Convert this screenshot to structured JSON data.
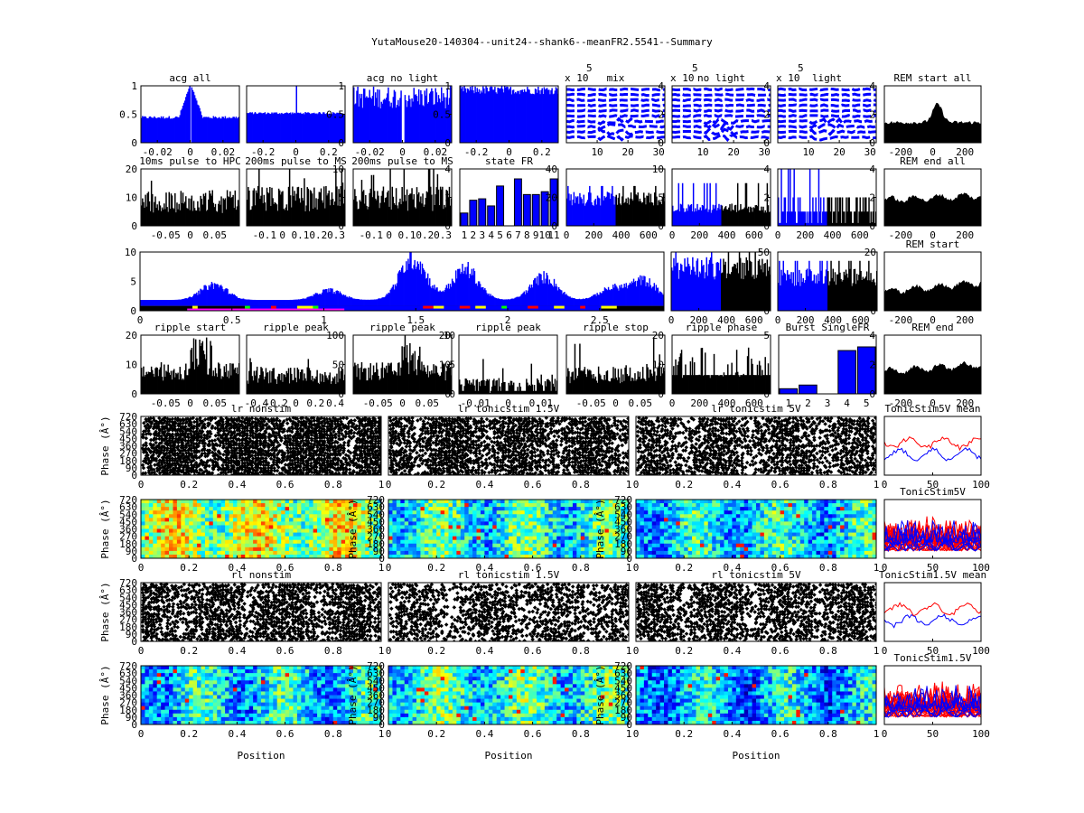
{
  "figure_title": "YutaMouse20-140304--unit24--shank6--meanFR2.5541--Summary",
  "chart_data": [
    {
      "id": "acg-all",
      "type": "bar",
      "title": "acg all",
      "color": "#0000ff",
      "ylim": [
        0,
        1
      ],
      "yticks_left": [
        "0",
        "0.5",
        "1"
      ],
      "yticks_right": [],
      "xticks": [
        "-0.02",
        "0",
        "0.02"
      ],
      "xlim": [
        -0.03,
        0.03
      ],
      "profile": "acg-center-dip",
      "base": 0.42,
      "peak": 1.0
    },
    {
      "id": "acg-2",
      "type": "bar",
      "title": "",
      "color": "#0000ff",
      "ylim": [
        0,
        1
      ],
      "yticks_right": [
        "0",
        "0.5",
        "1"
      ],
      "xticks": [
        "-0.2",
        "0",
        "0.2"
      ],
      "xlim": [
        -0.3,
        0.3
      ],
      "profile": "flat-spike",
      "base": 0.52,
      "peak": 1.0
    },
    {
      "id": "acg-no-light",
      "type": "bar",
      "title": "acg no light",
      "color": "#0000ff",
      "ylim": [
        0,
        1
      ],
      "yticks_right": [
        "0",
        "0.5",
        "1"
      ],
      "xticks": [
        "-0.02",
        "0",
        "0.02"
      ],
      "xlim": [
        -0.03,
        0.03
      ],
      "profile": "noisy-center-dip",
      "base": 0.8,
      "peak": 1.0
    },
    {
      "id": "acg-4",
      "type": "bar",
      "title": "",
      "color": "#0000ff",
      "ylim": [
        0,
        1
      ],
      "yticks_right": [],
      "xticks": [
        "-0.2",
        "0",
        "0.2"
      ],
      "xlim": [
        -0.3,
        0.3
      ],
      "profile": "noisy-high",
      "base": 0.95,
      "peak": 1.0
    },
    {
      "id": "mix",
      "type": "line",
      "title": "mix",
      "exponent_label": "x 10",
      "exponent": "5",
      "color": "#0000ff",
      "ylim": [
        0,
        4.3
      ],
      "yticks_right": [
        "0",
        "2",
        "4"
      ],
      "xticks": [
        "10",
        "20",
        "30"
      ],
      "xlim": [
        0,
        32
      ],
      "profile": "stacked-dashed"
    },
    {
      "id": "no-light-wave",
      "type": "line",
      "title": "no light",
      "exponent_label": "x 10",
      "exponent": "5",
      "color": "#0000ff",
      "ylim": [
        0,
        4.3
      ],
      "yticks_right": [
        "0",
        "2",
        "4"
      ],
      "xticks": [
        "10",
        "20",
        "30"
      ],
      "xlim": [
        0,
        32
      ],
      "profile": "stacked-dashed"
    },
    {
      "id": "light-wave",
      "type": "line",
      "title": "light",
      "exponent_label": "x 10",
      "exponent": "5",
      "color": "#0000ff",
      "ylim": [
        0,
        4
      ],
      "yticks_right": [
        "0",
        "2",
        "4"
      ],
      "xticks": [
        "10",
        "20",
        "30"
      ],
      "xlim": [
        0,
        32
      ],
      "profile": "stacked-dashed"
    },
    {
      "id": "rem-start-all",
      "type": "area",
      "title": "REM start all",
      "color": "#000000",
      "ylim": [
        0,
        4
      ],
      "yticks_left": [],
      "xticks": [
        "-200",
        "0",
        "200"
      ],
      "xlim": [
        -300,
        300
      ],
      "profile": "rem-peak",
      "base": 1.3,
      "peak": 2.6
    },
    {
      "id": "pulse-hpc",
      "type": "bar",
      "title": "10ms pulse to HPC",
      "color": "#000000",
      "ylim": [
        0,
        20
      ],
      "yticks_left": [
        "0",
        "10",
        "20"
      ],
      "xticks": [
        "-0.05",
        "0",
        "0.05"
      ],
      "xlim": [
        -0.1,
        0.1
      ],
      "profile": "noisy",
      "base": 9,
      "peak": 15
    },
    {
      "id": "pulse-ms-1",
      "type": "bar",
      "title": "200ms pulse to MS",
      "color": "#000000",
      "ylim": [
        0,
        10
      ],
      "yticks_right": [
        "0",
        "5",
        "10"
      ],
      "xticks": [
        "-0.1",
        "0",
        "0.1",
        "0.2",
        "0.3"
      ],
      "xlim": [
        -0.2,
        0.35
      ],
      "profile": "noisy",
      "base": 5,
      "peak": 10
    },
    {
      "id": "pulse-ms-2",
      "type": "bar",
      "title": "200ms pulse to MS",
      "color": "#000000",
      "ylim": [
        0,
        4
      ],
      "yticks_right": [
        "0",
        "2",
        "4"
      ],
      "xticks": [
        "-0.1",
        "0",
        "0.1",
        "0.2",
        "0.3"
      ],
      "xlim": [
        -0.2,
        0.35
      ],
      "profile": "noisy",
      "base": 2,
      "peak": 4
    },
    {
      "id": "state-fr",
      "type": "bar",
      "title": "state FR",
      "color": "#0000ff",
      "ylim": [
        0,
        40
      ],
      "yticks_right": [
        "0",
        "20",
        "40"
      ],
      "categories": [
        "1",
        "2",
        "3",
        "4",
        "5",
        "6",
        "7",
        "8",
        "9",
        "10",
        "11"
      ],
      "values": [
        9,
        18,
        19,
        14,
        28,
        0,
        33,
        22,
        22,
        24,
        33
      ],
      "profile": "categorical"
    },
    {
      "id": "fr-time-1",
      "type": "bar",
      "title": "",
      "color_a": "#0000ff",
      "color_b": "#000000",
      "ylim": [
        0,
        10
      ],
      "yticks_right": [
        "0",
        "5",
        "10"
      ],
      "xticks": [
        "0",
        "200",
        "400",
        "600"
      ],
      "xlim": [
        0,
        720
      ],
      "split": 360,
      "profile": "two-color",
      "base": 5,
      "peak": 7
    },
    {
      "id": "fr-time-2",
      "type": "bar",
      "title": "",
      "color_a": "#0000ff",
      "color_b": "#000000",
      "ylim": [
        0,
        4
      ],
      "yticks_right": [
        "0",
        "2",
        "4"
      ],
      "xticks": [
        "0",
        "200",
        "400",
        "600"
      ],
      "xlim": [
        0,
        720
      ],
      "split": 360,
      "profile": "two-color",
      "base": 1.3,
      "peak": 3
    },
    {
      "id": "fr-time-3",
      "type": "bar",
      "title": "",
      "color_a": "#0000ff",
      "color_b": "#000000",
      "ylim": [
        0,
        4
      ],
      "yticks_right": [
        "0",
        "2",
        "4"
      ],
      "xticks": [
        "0",
        "200",
        "400",
        "600"
      ],
      "xlim": [
        0,
        720
      ],
      "split": 360,
      "profile": "two-color-steps",
      "base": 1,
      "peak": 4
    },
    {
      "id": "rem-end-all",
      "type": "area",
      "title": "REM end all",
      "color": "#000000",
      "ylim": [
        0,
        4
      ],
      "xticks": [
        "-200",
        "0",
        "200"
      ],
      "xlim": [
        -300,
        300
      ],
      "profile": "rem-flat",
      "base": 1.7,
      "peak": 2.2
    },
    {
      "id": "session-timeline",
      "type": "bar",
      "title": "",
      "color": "#0000ff",
      "ylim": [
        -1,
        11
      ],
      "yticks_left": [
        "0",
        "5",
        "10"
      ],
      "xticks": [
        "0",
        "0.5",
        "1",
        "1.5",
        "2",
        "2.5"
      ],
      "xlim": [
        0,
        2.85
      ],
      "profile": "timeline",
      "base": 1.5,
      "peak": 11
    },
    {
      "id": "fr-time-4",
      "type": "bar",
      "title": "",
      "color_a": "#0000ff",
      "color_b": "#000000",
      "ylim": [
        0,
        50
      ],
      "yticks_right": [
        "0",
        "50"
      ],
      "xticks": [
        "0",
        "200",
        "400",
        "600"
      ],
      "xlim": [
        0,
        720
      ],
      "split": 360,
      "profile": "two-color",
      "base": 38,
      "peak": 50
    },
    {
      "id": "fr-time-5",
      "type": "bar",
      "title": "",
      "color_a": "#0000ff",
      "color_b": "#000000",
      "ylim": [
        0,
        20
      ],
      "yticks_right": [
        "0",
        "20"
      ],
      "xticks": [
        "0",
        "200",
        "400",
        "600"
      ],
      "xlim": [
        0,
        720
      ],
      "split": 360,
      "profile": "two-color",
      "base": 12,
      "peak": 17
    },
    {
      "id": "rem-start",
      "type": "area",
      "title": "REM start",
      "color": "#000000",
      "ylim": [
        0,
        4
      ],
      "xticks": [
        "-200",
        "0",
        "200"
      ],
      "xlim": [
        -300,
        300
      ],
      "profile": "rem-flat",
      "base": 1.2,
      "peak": 2.2
    },
    {
      "id": "ripple-start",
      "type": "bar",
      "title": "ripple start",
      "color": "#000000",
      "ylim": [
        0,
        20
      ],
      "yticks_left": [
        "0",
        "10",
        "20"
      ],
      "xticks": [
        "-0.05",
        "0",
        "0.05"
      ],
      "xlim": [
        -0.1,
        0.1
      ],
      "profile": "noisy-bump",
      "base": 8,
      "peak": 17
    },
    {
      "id": "ripple-peak-1",
      "type": "bar",
      "title": "ripple peak",
      "color": "#000000",
      "ylim": [
        0,
        100
      ],
      "yticks_right": [
        "0",
        "50",
        "100"
      ],
      "xticks": [
        "-0.4",
        "-0.2",
        "0",
        "0.2",
        "0.4"
      ],
      "xlim": [
        -0.5,
        0.5
      ],
      "profile": "noisy",
      "base": 33,
      "peak": 45
    },
    {
      "id": "ripple-peak-2",
      "type": "bar",
      "title": "ripple peak",
      "color": "#000000",
      "ylim": [
        0,
        20
      ],
      "yticks_right": [
        "0",
        "10",
        "20"
      ],
      "xticks": [
        "-0.05",
        "0",
        "0.05"
      ],
      "xlim": [
        -0.1,
        0.1
      ],
      "profile": "noisy-bump",
      "base": 8,
      "peak": 20
    },
    {
      "id": "ripple-peak-3",
      "type": "bar",
      "title": "ripple peak",
      "color": "#000000",
      "ylim": [
        0,
        10
      ],
      "yticks_left": [
        "0",
        "5",
        "10"
      ],
      "xticks": [
        "-0.01",
        "0",
        "0.01"
      ],
      "xlim": [
        -0.015,
        0.015
      ],
      "profile": "sparse",
      "base": 1.5,
      "peak": 6
    },
    {
      "id": "ripple-stop",
      "type": "bar",
      "title": "ripple stop",
      "color": "#000000",
      "ylim": [
        0,
        20
      ],
      "yticks_right": [
        "0",
        "10",
        "20"
      ],
      "xticks": [
        "-0.05",
        "0",
        "0.05"
      ],
      "xlim": [
        -0.1,
        0.1
      ],
      "profile": "noisy",
      "base": 7,
      "peak": 16
    },
    {
      "id": "ripple-phase",
      "type": "bar",
      "title": "ripple phase",
      "color": "#000000",
      "ylim": [
        0,
        5
      ],
      "yticks_right": [
        "0",
        "5"
      ],
      "xticks": [
        "0",
        "200",
        "400",
        "600"
      ],
      "xlim": [
        0,
        720
      ],
      "profile": "steps",
      "base": 2,
      "peak": 4
    },
    {
      "id": "burst-single-fr",
      "type": "bar",
      "title": "Burst SingleFR",
      "color": "#0000ff",
      "ylim": [
        0,
        4
      ],
      "yticks_right": [
        "0",
        "2",
        "4"
      ],
      "categories": [
        "1",
        "2",
        "3",
        "4",
        "5"
      ],
      "values": [
        0.35,
        0.6,
        0,
        2.95,
        3.2
      ],
      "profile": "categorical"
    },
    {
      "id": "rem-end",
      "type": "area",
      "title": "REM end",
      "color": "#000000",
      "ylim": [
        0,
        4
      ],
      "xticks": [
        "-200",
        "0",
        "200"
      ],
      "xlim": [
        -300,
        300
      ],
      "profile": "rem-flat",
      "base": 1.4,
      "peak": 2.2
    },
    {
      "id": "lr-nonstim",
      "type": "scatter",
      "title": "lr nonstim",
      "ylabel": "Phase (Â°)",
      "yticks_left": [
        "0",
        "90",
        "180",
        "270",
        "360",
        "450",
        "540",
        "630",
        "720"
      ],
      "xticks": [
        "0",
        "0.2",
        "0.4",
        "0.6",
        "0.8",
        "1"
      ],
      "xlim": [
        0,
        1
      ],
      "ylim": [
        0,
        720
      ],
      "density": 0.9
    },
    {
      "id": "lr-tonicstim-1-5v",
      "type": "scatter",
      "title": "lr tonicstim 1.5V",
      "yticks_left": [],
      "xticks": [
        "0",
        "0.2",
        "0.4",
        "0.6",
        "0.8",
        "1"
      ],
      "xlim": [
        0,
        1
      ],
      "ylim": [
        0,
        720
      ],
      "density": 0.72
    },
    {
      "id": "lr-tonicstim-5v",
      "type": "scatter",
      "title": "lr tonicstim 5V",
      "yticks_left": [],
      "xticks": [
        "0",
        "0.2",
        "0.4",
        "0.6",
        "0.8",
        "1"
      ],
      "xlim": [
        0,
        1
      ],
      "ylim": [
        0,
        720
      ],
      "density": 0.6
    },
    {
      "id": "tonicstim5v-mean",
      "type": "line",
      "title": "TonicStim5V mean",
      "xticks": [
        "0",
        "50",
        "100"
      ],
      "xlim": [
        0,
        100
      ],
      "series": [
        {
          "name": "red",
          "color": "#ff0000"
        },
        {
          "name": "blue",
          "color": "#0000ff"
        }
      ]
    },
    {
      "id": "lr-nonstim-heat",
      "type": "heatmap",
      "title": "",
      "ylabel": "Phase (Â°)",
      "yticks_left": [
        "0",
        "90",
        "180",
        "270",
        "360",
        "450",
        "540",
        "630",
        "720"
      ],
      "xticks": [
        "0",
        "0.2",
        "0.4",
        "0.6",
        "0.8",
        "1"
      ],
      "xlim": [
        0,
        1
      ],
      "ylim": [
        0,
        720
      ],
      "level": 0.55
    },
    {
      "id": "lr-tonicstim-1-5v-heat",
      "type": "heatmap",
      "title": "",
      "ylabel": "Phase (Â°)",
      "yticks_left": [
        "0",
        "90",
        "180",
        "270",
        "360",
        "450",
        "540",
        "630",
        "720"
      ],
      "xticks": [
        "0",
        "0.2",
        "0.4",
        "0.6",
        "0.8",
        "1"
      ],
      "xlim": [
        0,
        1
      ],
      "ylim": [
        0,
        720
      ],
      "level": 0.4
    },
    {
      "id": "lr-tonicstim-5v-heat",
      "type": "heatmap",
      "title": "",
      "ylabel": "Phase (Â°)",
      "yticks_left": [
        "0",
        "90",
        "180",
        "270",
        "360",
        "450",
        "540",
        "630",
        "720"
      ],
      "xticks": [
        "0",
        "0.2",
        "0.4",
        "0.6",
        "0.8",
        "1"
      ],
      "xlim": [
        0,
        1
      ],
      "ylim": [
        0,
        720
      ],
      "level": 0.35
    },
    {
      "id": "tonicstim5v",
      "type": "line",
      "title": "TonicStim5V",
      "xticks": [
        "0",
        "50",
        "100"
      ],
      "xlim": [
        0,
        100
      ],
      "series": [
        {
          "name": "red",
          "color": "#ff0000"
        },
        {
          "name": "blue",
          "color": "#0000ff"
        }
      ]
    },
    {
      "id": "rl-nonstim",
      "type": "scatter",
      "title": "rl nonstim",
      "ylabel": "Phase (Â°)",
      "yticks_left": [
        "0",
        "90",
        "180",
        "270",
        "360",
        "450",
        "540",
        "630",
        "720"
      ],
      "xticks": [
        "0",
        "0.2",
        "0.4",
        "0.6",
        "0.8",
        "1"
      ],
      "xlim": [
        0,
        1
      ],
      "ylim": [
        0,
        720
      ],
      "density": 0.65
    },
    {
      "id": "rl-tonicstim-1-5v",
      "type": "scatter",
      "title": "rl tonicstim 1.5V",
      "yticks_left": [],
      "xticks": [
        "0",
        "0.2",
        "0.4",
        "0.6",
        "0.8",
        "1"
      ],
      "xlim": [
        0,
        1
      ],
      "ylim": [
        0,
        720
      ],
      "density": 0.5
    },
    {
      "id": "rl-tonicstim-5v",
      "type": "scatter",
      "title": "rl tonicstim 5V",
      "yticks_left": [],
      "xticks": [
        "0",
        "0.2",
        "0.4",
        "0.6",
        "0.8",
        "1"
      ],
      "xlim": [
        0,
        1
      ],
      "ylim": [
        0,
        720
      ],
      "density": 0.6
    },
    {
      "id": "tonicstim1-5v-mean",
      "type": "line",
      "title": "TonicStim1.5V mean",
      "xticks": [
        "0",
        "50",
        "100"
      ],
      "xlim": [
        0,
        100
      ],
      "series": [
        {
          "name": "blue",
          "color": "#0000ff"
        },
        {
          "name": "red",
          "color": "#ff0000"
        }
      ]
    },
    {
      "id": "rl-nonstim-heat",
      "type": "heatmap",
      "title": "",
      "ylabel": "Phase (Â°)",
      "xlabel": "Position",
      "yticks_left": [
        "0",
        "90",
        "180",
        "270",
        "360",
        "450",
        "540",
        "630",
        "720"
      ],
      "xticks": [
        "0",
        "0.2",
        "0.4",
        "0.6",
        "0.8",
        "1"
      ],
      "xlim": [
        0,
        1
      ],
      "ylim": [
        0,
        720
      ],
      "level": 0.35
    },
    {
      "id": "rl-tonicstim-1-5v-heat",
      "type": "heatmap",
      "title": "",
      "ylabel": "Phase (Â°)",
      "xlabel": "Position",
      "yticks_left": [
        "0",
        "90",
        "180",
        "270",
        "360",
        "450",
        "540",
        "630",
        "720"
      ],
      "xticks": [
        "0",
        "0.2",
        "0.4",
        "0.6",
        "0.8",
        "1"
      ],
      "xlim": [
        0,
        1
      ],
      "ylim": [
        0,
        720
      ],
      "level": 0.4
    },
    {
      "id": "rl-tonicstim-5v-heat",
      "type": "heatmap",
      "title": "",
      "ylabel": "Phase (Â°)",
      "xlabel": "Position",
      "yticks_left": [
        "0",
        "90",
        "180",
        "270",
        "360",
        "450",
        "540",
        "630",
        "720"
      ],
      "xticks": [
        "0",
        "0.2",
        "0.4",
        "0.6",
        "0.8",
        "1"
      ],
      "xlim": [
        0,
        1
      ],
      "ylim": [
        0,
        720
      ],
      "level": 0.3
    },
    {
      "id": "tonicstim1-5v",
      "type": "line",
      "title": "TonicStim1.5V",
      "xticks": [
        "0",
        "50",
        "100"
      ],
      "xlim": [
        0,
        100
      ],
      "series": [
        {
          "name": "red",
          "color": "#ff0000"
        },
        {
          "name": "blue",
          "color": "#0000ff"
        }
      ]
    }
  ]
}
